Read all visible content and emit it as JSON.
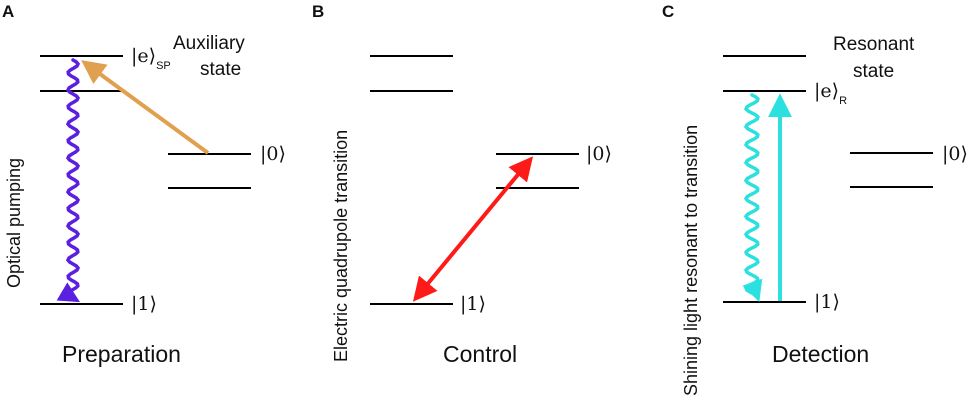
{
  "colors": {
    "level": "#000000",
    "pump": "#5a1fe0",
    "auxiliary_arrow": "#e0a050",
    "control_arrow": "#ff1a1a",
    "detection": "#2de0e0"
  },
  "panels": {
    "A": {
      "letter": "A",
      "ket_e": "|e⟩",
      "ket_e_sub": "SP",
      "ket_0": "|0⟩",
      "ket_1": "|1⟩",
      "aux_line1": "Auxiliary",
      "aux_line2": "state",
      "vertical_label": "Optical pumping",
      "caption": "Preparation"
    },
    "B": {
      "letter": "B",
      "ket_0": "|0⟩",
      "ket_1": "|1⟩",
      "vertical_label": "Electric quadrupole transition",
      "caption": "Control"
    },
    "C": {
      "letter": "C",
      "ket_e": "|e⟩",
      "ket_e_sub": "R",
      "ket_0": "|0⟩",
      "ket_1": "|1⟩",
      "res_line1": "Resonant",
      "res_line2": "state",
      "vertical_label": "Shining light resonant to transition",
      "caption": "Detection"
    }
  }
}
